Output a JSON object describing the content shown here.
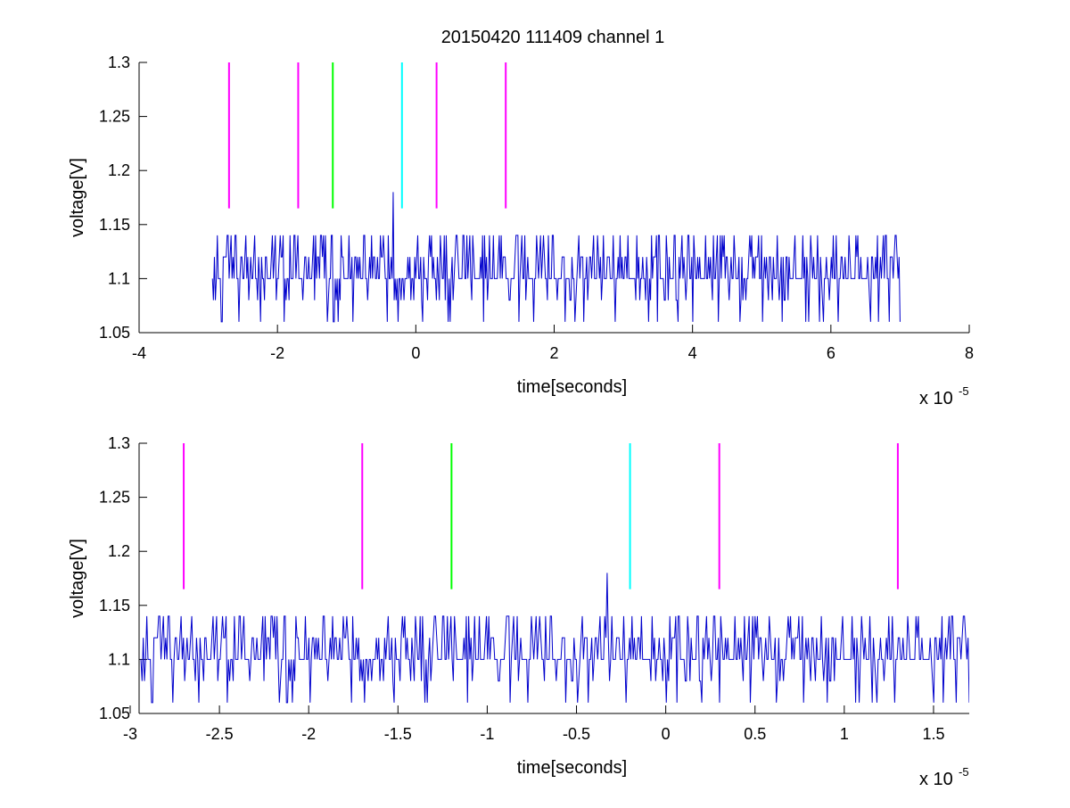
{
  "figure": {
    "title": "20150420 111409 channel 1",
    "colors": {
      "trace": "#0000cc",
      "marker_magenta": "#ff00ff",
      "marker_green": "#00ff00",
      "marker_cyan": "#00ffff",
      "axis": "#000000"
    }
  },
  "chart_data": [
    {
      "type": "line",
      "title": "20150420 111409 channel 1",
      "xlabel": "time[seconds]",
      "ylabel": "voltage[V]",
      "x_exponent_label": "x 10",
      "x_exponent_power": "-5",
      "xlim": [
        -4e-05,
        8e-05
      ],
      "ylim": [
        1.05,
        1.3
      ],
      "xticks": [
        -4e-05,
        -2e-05,
        0,
        2e-05,
        4e-05,
        6e-05,
        8e-05
      ],
      "xtick_labels": [
        "-4",
        "-2",
        "0",
        "2",
        "4",
        "6",
        "8"
      ],
      "yticks": [
        1.05,
        1.1,
        1.15,
        1.2,
        1.25,
        1.3
      ],
      "ytick_labels": [
        "1.05",
        "1.1",
        "1.15",
        "1.2",
        "1.25",
        "1.3"
      ],
      "grid": false,
      "series": [
        {
          "x_start": -2.94e-05,
          "x_end": 7e-05,
          "levels": [
            1.06,
            1.08,
            1.1,
            1.12,
            1.14
          ],
          "baseline": 1.1,
          "peak_x": -3.3e-06,
          "peak_y": 1.18,
          "color": "#0000cc"
        }
      ],
      "markers": [
        {
          "x": -2.7e-05,
          "y_range": [
            1.165,
            1.3
          ],
          "color": "#ff00ff"
        },
        {
          "x": -1.7e-05,
          "y_range": [
            1.165,
            1.3
          ],
          "color": "#ff00ff"
        },
        {
          "x": -1.2e-05,
          "y_range": [
            1.165,
            1.3
          ],
          "color": "#00ff00"
        },
        {
          "x": -2e-06,
          "y_range": [
            1.165,
            1.3
          ],
          "color": "#00ffff"
        },
        {
          "x": 3e-06,
          "y_range": [
            1.165,
            1.3
          ],
          "color": "#ff00ff"
        },
        {
          "x": 1.3e-05,
          "y_range": [
            1.165,
            1.3
          ],
          "color": "#ff00ff"
        }
      ]
    },
    {
      "type": "line",
      "title": "",
      "xlabel": "time[seconds]",
      "ylabel": "voltage[V]",
      "x_exponent_label": "x 10",
      "x_exponent_power": "-5",
      "xlim": [
        -2.95e-05,
        1.7e-05
      ],
      "ylim": [
        1.05,
        1.3
      ],
      "xticks": [
        -3e-05,
        -2.5e-05,
        -2e-05,
        -1.5e-05,
        -1e-05,
        -5e-06,
        0,
        5e-06,
        1e-05,
        1.5e-05
      ],
      "xtick_labels": [
        "-3",
        "-2.5",
        "-2",
        "-1.5",
        "-1",
        "-0.5",
        "0",
        "0.5",
        "1",
        "1.5"
      ],
      "yticks": [
        1.05,
        1.1,
        1.15,
        1.2,
        1.25,
        1.3
      ],
      "ytick_labels": [
        "1.05",
        "1.1",
        "1.15",
        "1.2",
        "1.25",
        "1.3"
      ],
      "grid": false,
      "series": [
        {
          "x_start": -2.94e-05,
          "x_end": 1.7e-05,
          "levels": [
            1.06,
            1.08,
            1.1,
            1.12,
            1.14
          ],
          "baseline": 1.1,
          "peak_x": -3.3e-06,
          "peak_y": 1.18,
          "color": "#0000cc"
        }
      ],
      "markers": [
        {
          "x": -2.7e-05,
          "y_range": [
            1.165,
            1.3
          ],
          "color": "#ff00ff"
        },
        {
          "x": -1.7e-05,
          "y_range": [
            1.165,
            1.3
          ],
          "color": "#ff00ff"
        },
        {
          "x": -1.2e-05,
          "y_range": [
            1.165,
            1.3
          ],
          "color": "#00ff00"
        },
        {
          "x": -2e-06,
          "y_range": [
            1.165,
            1.3
          ],
          "color": "#00ffff"
        },
        {
          "x": 3e-06,
          "y_range": [
            1.165,
            1.3
          ],
          "color": "#ff00ff"
        },
        {
          "x": 1.3e-05,
          "y_range": [
            1.165,
            1.3
          ],
          "color": "#ff00ff"
        }
      ]
    }
  ]
}
